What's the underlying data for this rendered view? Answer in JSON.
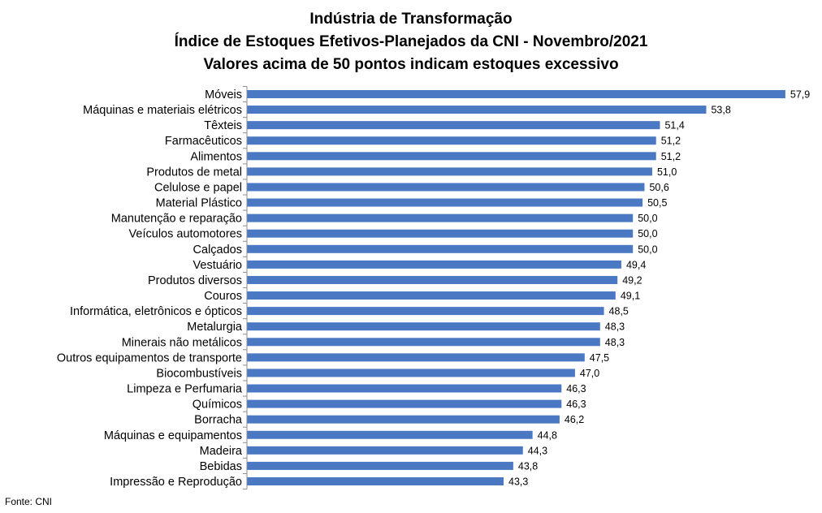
{
  "title_lines": [
    "Indústria de Transformação",
    "Índice de Estoques Efetivos-Planejados da CNI - Novembro/2021",
    "Valores acima de 50 pontos indicam estoques excessivo"
  ],
  "source": "Fonte: CNI",
  "colors": {
    "bar": "#4a78c2",
    "axis": "#8c8c8c"
  },
  "chart_data": {
    "type": "bar",
    "orientation": "horizontal",
    "title": "Indústria de Transformação / Índice de Estoques Efetivos-Planejados da CNI - Novembro/2021 / Valores acima de 50 pontos indicam estoques excessivo",
    "categories": [
      "Móveis",
      "Máquinas e materiais elétricos",
      "Têxteis",
      "Farmacêuticos",
      "Alimentos",
      "Produtos de metal",
      "Celulose e papel",
      "Material Plástico",
      "Manutenção e reparação",
      "Veículos automotores",
      "Calçados",
      "Vestuário",
      "Produtos diversos",
      "Couros",
      "Informática, eletrônicos e ópticos",
      "Metalurgia",
      "Minerais não metálicos",
      "Outros equipamentos de transporte",
      "Biocombustíveis",
      "Limpeza e Perfumaria",
      "Químicos",
      "Borracha",
      "Máquinas e equipamentos",
      "Madeira",
      "Bebidas",
      "Impressão e Reprodução"
    ],
    "values": [
      57.9,
      53.8,
      51.4,
      51.2,
      51.2,
      51.0,
      50.6,
      50.5,
      50.0,
      50.0,
      50.0,
      49.4,
      49.2,
      49.1,
      48.5,
      48.3,
      48.3,
      47.5,
      47.0,
      46.3,
      46.3,
      46.2,
      44.8,
      44.3,
      43.8,
      43.3
    ],
    "value_labels": [
      "57,9",
      "53,8",
      "51,4",
      "51,2",
      "51,2",
      "51,0",
      "50,6",
      "50,5",
      "50,0",
      "50,0",
      "50,0",
      "49,4",
      "49,2",
      "49,1",
      "48,5",
      "48,3",
      "48,3",
      "47,5",
      "47,0",
      "46,3",
      "46,3",
      "46,2",
      "44,8",
      "44,3",
      "43,8",
      "43,3"
    ],
    "xlim": [
      30,
      58.5
    ],
    "grid": false,
    "legend": "none"
  }
}
